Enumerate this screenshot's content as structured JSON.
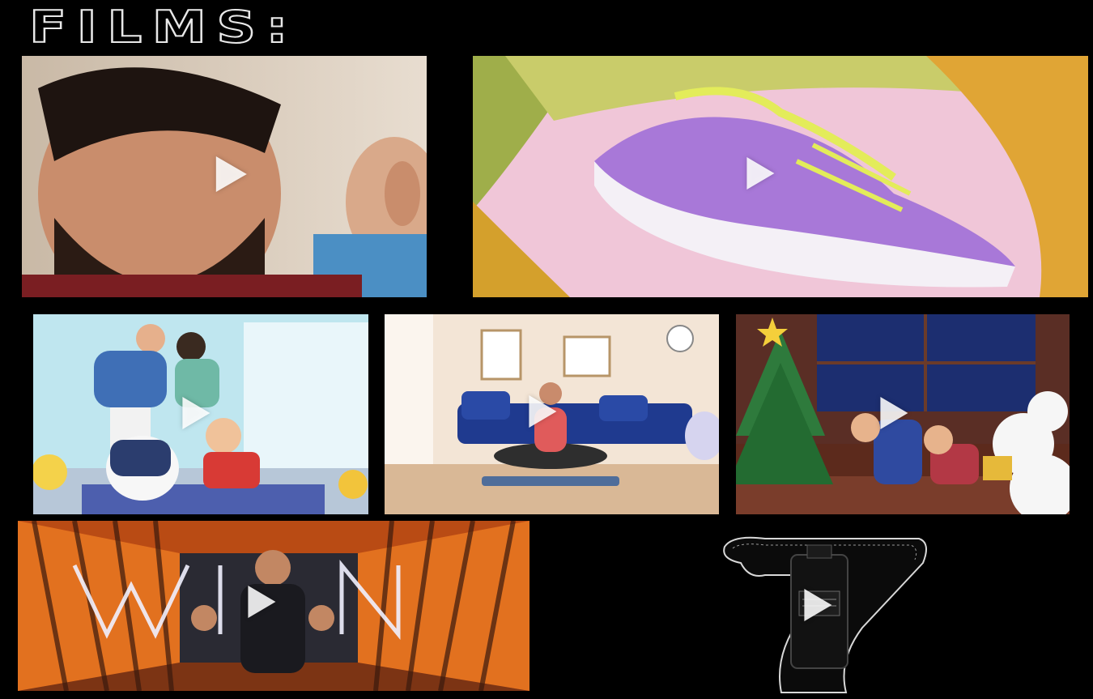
{
  "page": {
    "title": "FILMS:"
  },
  "films": [
    {
      "thumbnail": "man-with-beard-thumbnail",
      "icon": "play-icon"
    },
    {
      "thumbnail": "purple-sneaker-thumbnail",
      "icon": "play-icon"
    },
    {
      "thumbnail": "family-with-robot-thumbnail",
      "icon": "play-icon"
    },
    {
      "thumbnail": "yoga-living-room-thumbnail",
      "icon": "play-icon"
    },
    {
      "thumbnail": "christmas-kids-snowman-thumbnail",
      "icon": "play-icon"
    },
    {
      "thumbnail": "win-neon-tunnel-thumbnail",
      "icon": "play-icon"
    },
    {
      "thumbnail": "number-seven-bottle-thumbnail",
      "icon": "play-icon"
    }
  ],
  "colors": {
    "background": "#000000",
    "title_outline": "#e8e8e8",
    "play_icon": "#ffffff"
  }
}
